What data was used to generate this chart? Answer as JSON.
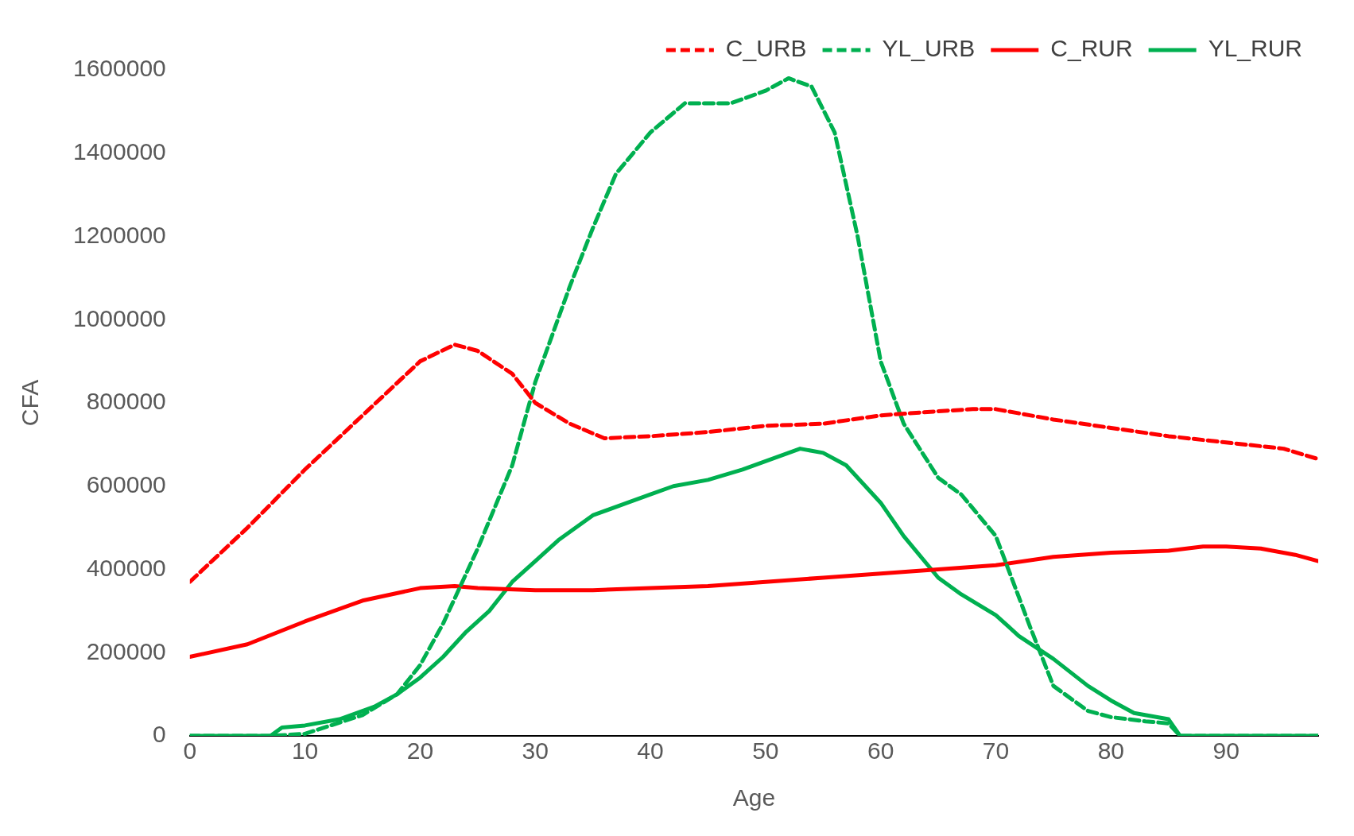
{
  "chart_data": {
    "type": "line",
    "xlabel": "Age",
    "ylabel": "CFA",
    "xlim": [
      0,
      98
    ],
    "xticks": [
      0,
      10,
      20,
      30,
      40,
      50,
      60,
      70,
      80,
      90
    ],
    "ylim": [
      0,
      1600000
    ],
    "yticks": [
      0,
      200000,
      400000,
      600000,
      800000,
      1000000,
      1200000,
      1400000,
      1600000
    ],
    "grid": false,
    "legend": "top right",
    "marker": "none",
    "series": [
      {
        "name": "C_URB",
        "color": "#ff0000",
        "line_style": "dashed",
        "x": [
          0,
          5,
          10,
          15,
          20,
          23,
          25,
          28,
          30,
          33,
          36,
          40,
          45,
          50,
          55,
          60,
          65,
          68,
          70,
          75,
          80,
          85,
          90,
          95,
          98
        ],
        "values": [
          370000,
          500000,
          640000,
          770000,
          900000,
          940000,
          925000,
          870000,
          800000,
          750000,
          715000,
          720000,
          730000,
          745000,
          750000,
          770000,
          780000,
          785000,
          785000,
          760000,
          740000,
          720000,
          705000,
          690000,
          665000
        ]
      },
      {
        "name": "YL_URB",
        "color": "#00b050",
        "line_style": "dashed",
        "x": [
          0,
          7,
          10,
          15,
          18,
          20,
          22,
          25,
          28,
          30,
          33,
          35,
          37,
          40,
          43,
          47,
          50,
          52,
          54,
          56,
          58,
          60,
          62,
          65,
          67,
          70,
          73,
          75,
          78,
          80,
          83,
          85,
          86,
          98
        ],
        "values": [
          0,
          0,
          5000,
          50000,
          100000,
          170000,
          270000,
          450000,
          650000,
          850000,
          1080000,
          1220000,
          1350000,
          1450000,
          1520000,
          1520000,
          1550000,
          1580000,
          1560000,
          1450000,
          1200000,
          900000,
          750000,
          620000,
          580000,
          480000,
          260000,
          120000,
          60000,
          45000,
          35000,
          30000,
          0,
          0
        ]
      },
      {
        "name": "C_RUR",
        "color": "#ff0000",
        "line_style": "solid",
        "x": [
          0,
          5,
          10,
          15,
          20,
          23,
          25,
          30,
          35,
          40,
          45,
          50,
          55,
          60,
          65,
          70,
          75,
          80,
          85,
          88,
          90,
          93,
          96,
          98
        ],
        "values": [
          190000,
          220000,
          275000,
          325000,
          355000,
          360000,
          355000,
          350000,
          350000,
          355000,
          360000,
          370000,
          380000,
          390000,
          400000,
          410000,
          430000,
          440000,
          445000,
          455000,
          455000,
          450000,
          435000,
          420000
        ]
      },
      {
        "name": "YL_RUR",
        "color": "#00b050",
        "line_style": "solid",
        "x": [
          0,
          7,
          8,
          10,
          13,
          16,
          18,
          20,
          22,
          24,
          26,
          28,
          30,
          32,
          35,
          38,
          40,
          42,
          45,
          48,
          50,
          53,
          55,
          57,
          60,
          62,
          65,
          67,
          70,
          72,
          75,
          78,
          80,
          82,
          85,
          86,
          98
        ],
        "values": [
          0,
          0,
          20000,
          25000,
          40000,
          70000,
          100000,
          140000,
          190000,
          250000,
          300000,
          370000,
          420000,
          470000,
          530000,
          560000,
          580000,
          600000,
          615000,
          640000,
          660000,
          690000,
          680000,
          650000,
          560000,
          480000,
          380000,
          340000,
          290000,
          240000,
          185000,
          120000,
          85000,
          55000,
          40000,
          0,
          0
        ]
      }
    ]
  }
}
